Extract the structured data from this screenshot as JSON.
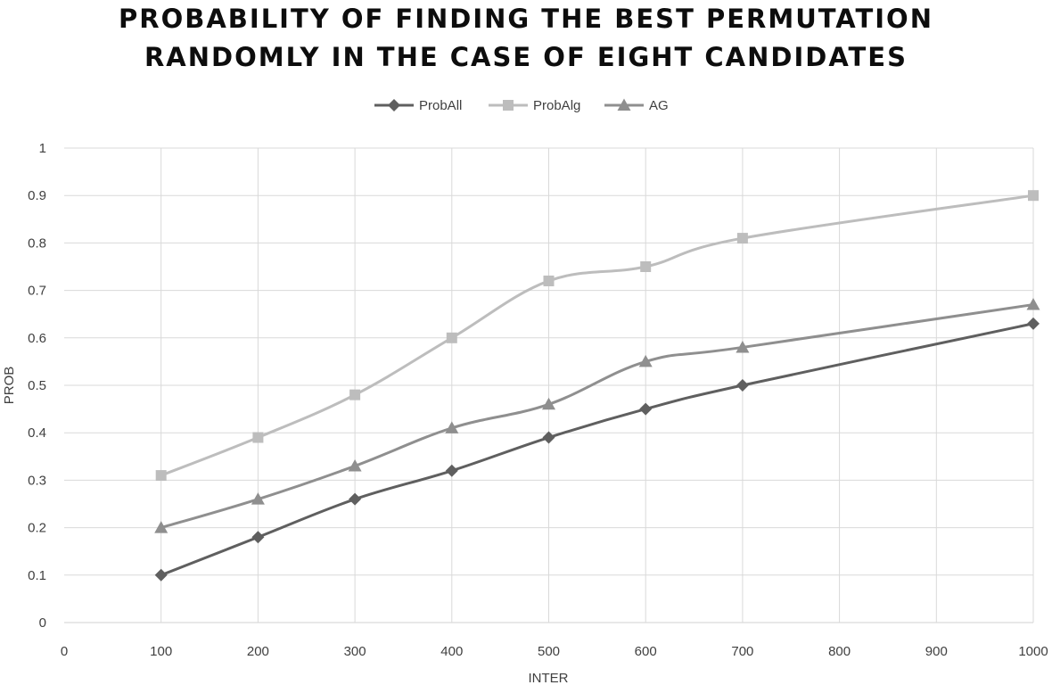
{
  "chart_data": {
    "type": "line",
    "title_lines": [
      "PROBABILITY OF FINDING THE BEST PERMUTATION",
      "RANDOMLY IN THE CASE OF EIGHT CANDIDATES"
    ],
    "xlabel": "INTER",
    "ylabel": "PROB",
    "xlim": [
      0,
      1000
    ],
    "ylim": [
      0,
      1
    ],
    "xticks": [
      0,
      100,
      200,
      300,
      400,
      500,
      600,
      700,
      800,
      900,
      1000
    ],
    "yticks": [
      0,
      0.1,
      0.2,
      0.3,
      0.4,
      0.5,
      0.6,
      0.7,
      0.8,
      0.9,
      1
    ],
    "xtick_labels": [
      "0",
      "100",
      "200",
      "300",
      "400",
      "500",
      "600",
      "700",
      "800",
      "900",
      "1000"
    ],
    "ytick_labels": [
      "0",
      "0.1",
      "0.2",
      "0.3",
      "0.4",
      "0.5",
      "0.6",
      "0.7",
      "0.8",
      "0.9",
      "1"
    ],
    "grid": true,
    "legend_position": "top-center",
    "x": [
      100,
      200,
      300,
      400,
      500,
      600,
      700,
      1000
    ],
    "series": [
      {
        "name": "ProbAll",
        "marker": "diamond",
        "color": "#5f5f5f",
        "values": [
          0.1,
          0.18,
          0.26,
          0.32,
          0.39,
          0.45,
          0.5,
          0.63
        ]
      },
      {
        "name": "ProbAlg",
        "marker": "square",
        "color": "#bdbdbd",
        "values": [
          0.31,
          0.39,
          0.48,
          0.6,
          0.72,
          0.75,
          0.81,
          0.9
        ]
      },
      {
        "name": "AG",
        "marker": "triangle",
        "color": "#8f8f8f",
        "values": [
          0.2,
          0.26,
          0.33,
          0.41,
          0.46,
          0.55,
          0.58,
          0.67
        ]
      }
    ]
  }
}
